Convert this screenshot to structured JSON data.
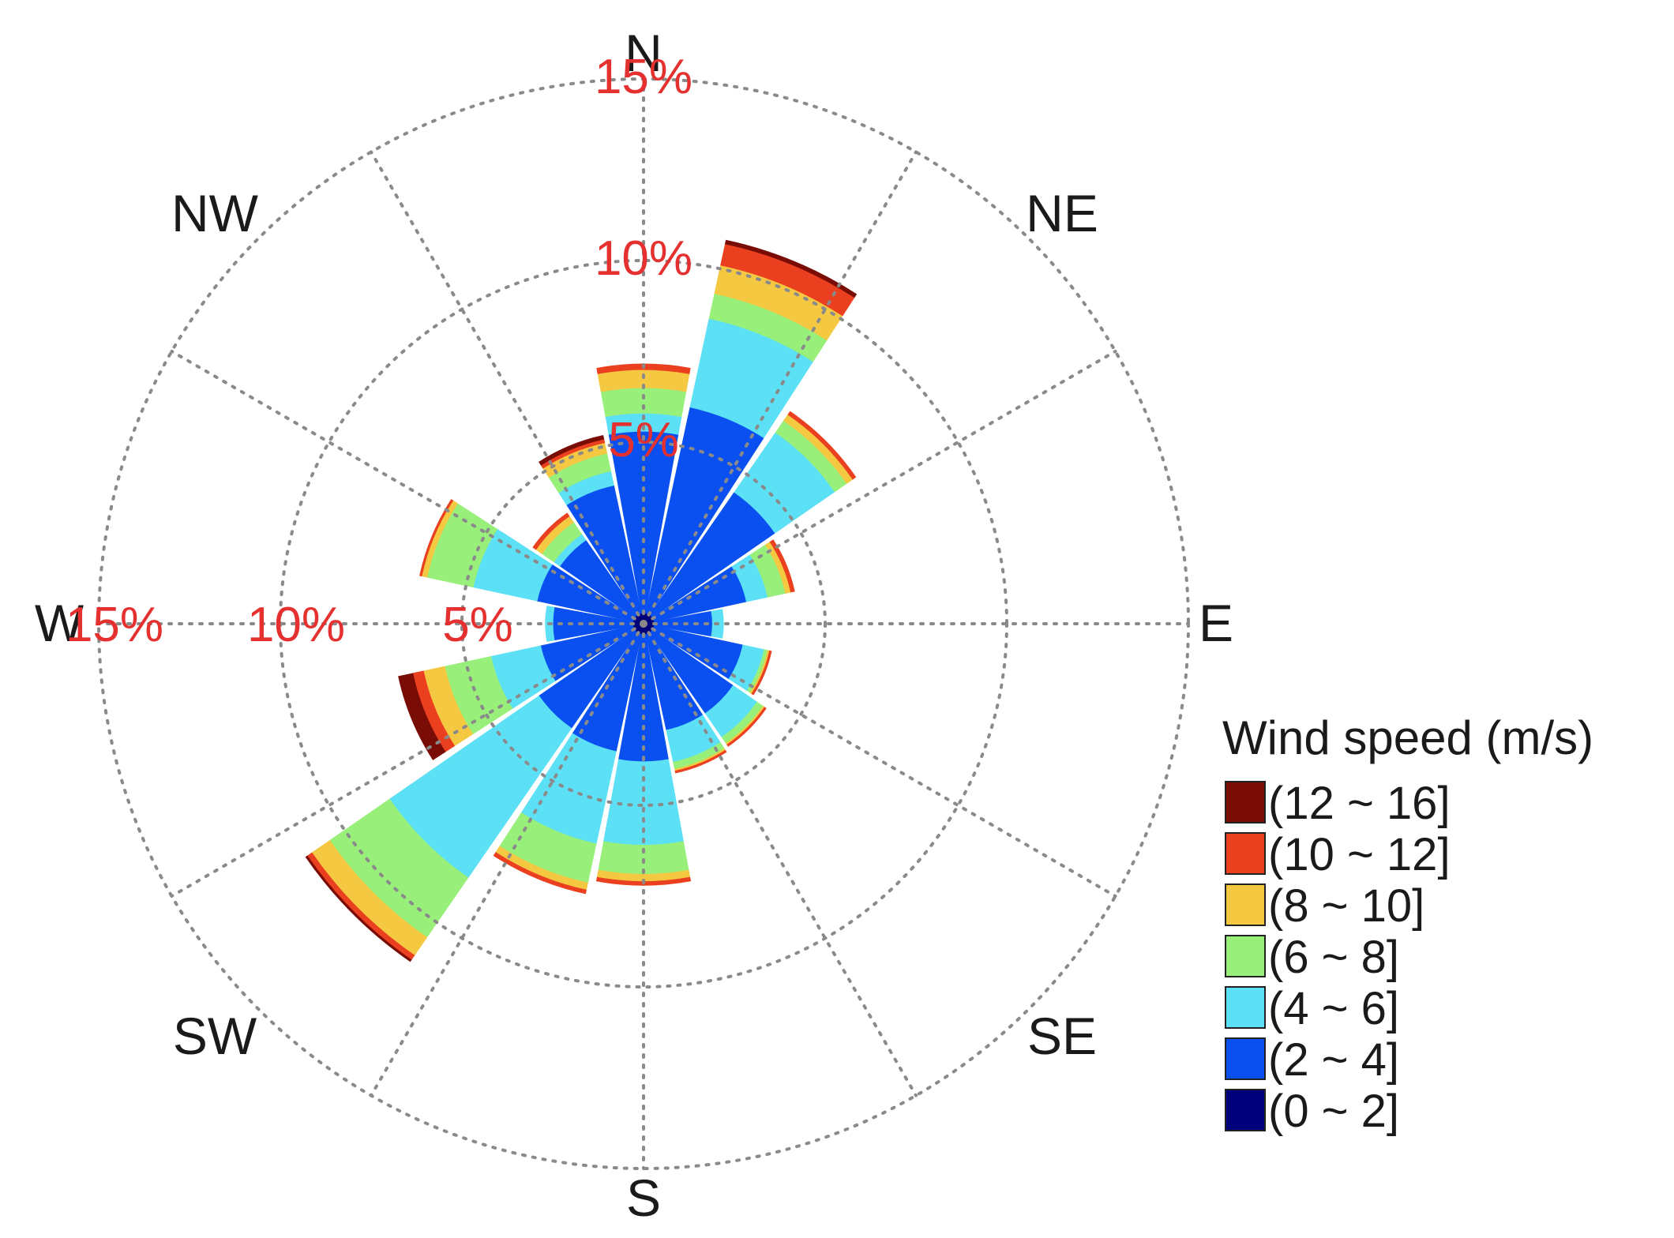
{
  "chart_data": {
    "type": "polar-bar",
    "title": "",
    "directions": [
      "N",
      "NE",
      "E",
      "SE",
      "S",
      "SW",
      "W",
      "NW"
    ],
    "radial_ticks": [
      5,
      10,
      15
    ],
    "radial_tick_labels": [
      "5%",
      "10%",
      "15%"
    ],
    "radial_max": 15,
    "sector_count": 16,
    "sectors": [
      "N",
      "NNE",
      "NE",
      "ENE",
      "E",
      "ESE",
      "SE",
      "SSE",
      "S",
      "SSW",
      "SW",
      "WSW",
      "W",
      "WNW",
      "NW",
      "NNW"
    ],
    "legend_title": "Wind speed (m/s)",
    "series": [
      {
        "name": "(0 ~ 2]",
        "color": "#00007a",
        "values": [
          0.3,
          0.3,
          0.3,
          0.3,
          0.3,
          0.3,
          0.3,
          0.3,
          0.3,
          0.3,
          0.3,
          0.3,
          0.3,
          0.3,
          0.3,
          0.3
        ]
      },
      {
        "name": "(2 ~ 4]",
        "color": "#0a50f0",
        "values": [
          5.0,
          5.8,
          4.1,
          2.6,
          1.6,
          2.5,
          2.7,
          2.7,
          3.5,
          3.3,
          3.2,
          2.6,
          2.2,
          2.7,
          2.5,
          3.6
        ]
      },
      {
        "name": "(4 ~ 6]",
        "color": "#5ce0f5",
        "values": [
          0.5,
          2.5,
          2.0,
          0.6,
          0.3,
          0.6,
          0.8,
          0.9,
          2.3,
          2.6,
          5.0,
          1.4,
          0.2,
          1.8,
          0.2,
          0.4
        ]
      },
      {
        "name": "(6 ~ 8]",
        "color": "#98f07a",
        "values": [
          0.7,
          0.7,
          0.4,
          0.5,
          0.0,
          0.1,
          0.2,
          0.2,
          0.8,
          1.1,
          2.0,
          1.3,
          0.0,
          1.3,
          0.4,
          0.5
        ]
      },
      {
        "name": "(8 ~ 10]",
        "color": "#f5c842",
        "values": [
          0.5,
          0.8,
          0.2,
          0.15,
          0.0,
          0.05,
          0.05,
          0.05,
          0.2,
          0.2,
          0.6,
          0.6,
          0.0,
          0.15,
          0.2,
          0.3
        ]
      },
      {
        "name": "(10 ~ 12]",
        "color": "#ea4020",
        "values": [
          0.15,
          0.6,
          0.1,
          0.1,
          0.0,
          0.05,
          0.05,
          0.05,
          0.1,
          0.1,
          0.15,
          0.3,
          0.0,
          0.05,
          0.1,
          0.1
        ]
      },
      {
        "name": "(12 ~ 16]",
        "color": "#7a0c06",
        "values": [
          0.0,
          0.1,
          0.0,
          0.0,
          0.0,
          0.0,
          0.0,
          0.0,
          0.0,
          0.0,
          0.05,
          0.4,
          0.0,
          0.0,
          0.0,
          0.1
        ]
      }
    ]
  }
}
